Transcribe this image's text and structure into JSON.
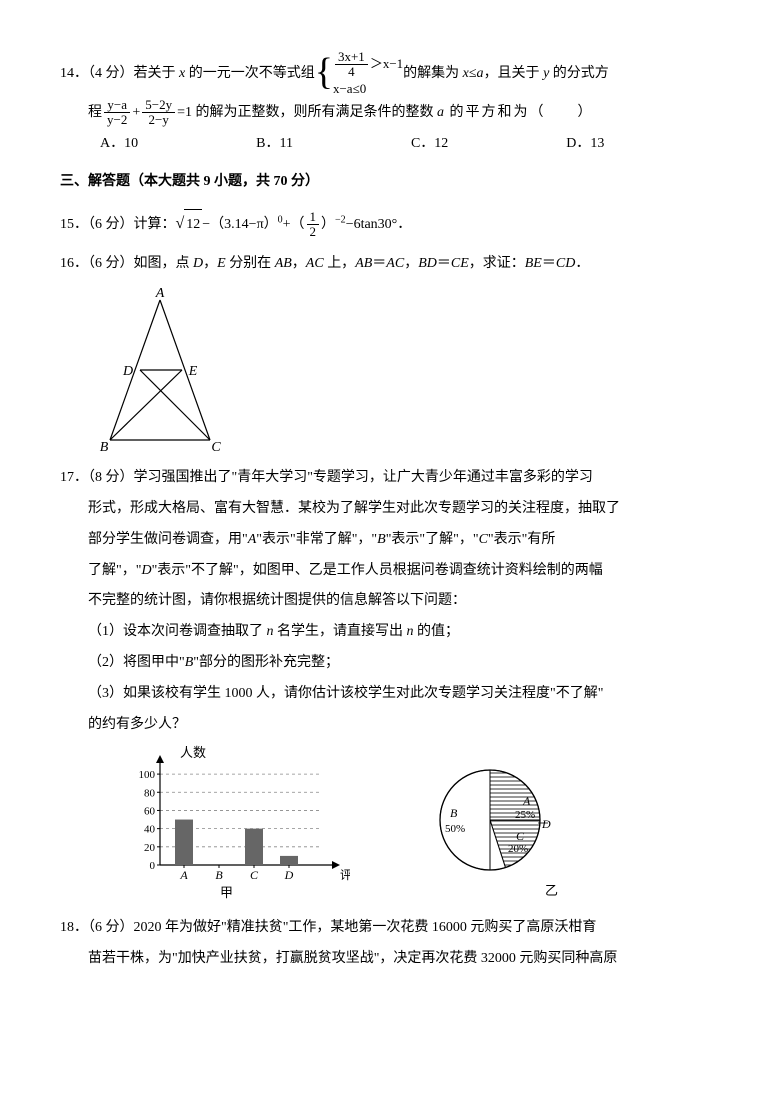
{
  "q14": {
    "number": "14．",
    "points": "（4 分）",
    "text_part1": "若关于 ",
    "var_x": "x",
    "text_part2": " 的一元一次不等式组",
    "system_top_num": "3x+1",
    "system_top_den": "4",
    "system_top_rhs": "＞x−1",
    "system_bottom": "x−a≤0",
    "text_part3": "的解集为 ",
    "solution": "x≤a",
    "text_part4": "，且关于 ",
    "var_y": "y",
    "text_part5": " 的分式方",
    "line2_pre": "程",
    "frac1_num": "y−a",
    "frac1_den": "y−2",
    "plus": "+",
    "frac2_num": "5−2y",
    "frac2_den": "2−y",
    "eq_rhs": "=1",
    "line2_post": " 的解为正整数，则所有满足条件的整数 ",
    "var_a": "a",
    "line2_end": " 的平方和为（　　）",
    "choice_a": "A．10",
    "choice_b": "B．11",
    "choice_c": "C．12",
    "choice_d": "D．13"
  },
  "section3": "三、解答题（本大题共 9 小题，共 70 分）",
  "q15": {
    "number": "15．",
    "points": "（6 分）",
    "label": "计算：",
    "sqrt_val": "12",
    "minus1": "−（3.14−π）",
    "exp0": "0",
    "plus": "+（",
    "frac_num": "1",
    "frac_den": "2",
    "close_exp": "）",
    "exp_neg2": "−2",
    "tail": "−6tan30°．"
  },
  "q16": {
    "number": "16．",
    "points": "（6 分）",
    "text": "如图，点 ",
    "D": "D",
    "comma1": "，",
    "E": "E",
    "text2": " 分别在 ",
    "AB": "AB",
    "comma2": "，",
    "AC": "AC",
    "text3": " 上，",
    "eq1_l": "AB",
    "eq1_r": "AC",
    "eq2_l": "BD",
    "eq2_r": "CE",
    "text4": "，求证：",
    "prove_l": "BE",
    "prove_r": "CD",
    "period": "．",
    "labels": {
      "A": "A",
      "B": "B",
      "C": "C",
      "D": "D",
      "E": "E"
    }
  },
  "q17": {
    "number": "17．",
    "points": "（8 分）",
    "line1": "学习强国推出了\"青年大学习\"专题学习，让广大青少年通过丰富多彩的学习",
    "line2": "形式，形成大格局、富有大智慧．某校为了解学生对此次专题学习的关注程度，抽取了",
    "line3": "部分学生做问卷调查，用\"",
    "A_label": "A",
    "line3b": "\"表示\"非常了解\"，\"",
    "B_label": "B",
    "line3c": "\"表示\"了解\"，\"",
    "C_label": "C",
    "line3d": "\"表示\"有所",
    "line4": "了解\"，\"",
    "D_label": "D",
    "line4b": "\"表示\"不了解\"，如图甲、乙是工作人员根据问卷调查统计资料绘制的两幅",
    "line5": "不完整的统计图，请你根据统计图提供的信息解答以下问题：",
    "sub1": "（1）设本次问卷调查抽取了 ",
    "var_n": "n",
    "sub1b": " 名学生，请直接写出 ",
    "sub1c": " 的值；",
    "sub2a": "（2）将图甲中\"",
    "sub2b": "\"部分的图形补充完整；",
    "sub3": "（3）如果该校有学生 1000 人，请你估计该校学生对此次专题学习关注程度\"不了解\"",
    "sub3b": "的约有多少人？",
    "bar_chart": {
      "y_title": "人数",
      "x_title": "评价等级",
      "caption": "甲",
      "y_ticks": [
        "100",
        "80",
        "60",
        "40",
        "20",
        "0"
      ],
      "x_labels": [
        "A",
        "B",
        "C",
        "D"
      ],
      "values": [
        50,
        0,
        40,
        10
      ],
      "bar_color": "#666666",
      "grid_color": "#888888",
      "y_max": 110
    },
    "pie_chart": {
      "caption": "乙",
      "slices": [
        {
          "label": "A",
          "pct": "25%",
          "start": 0,
          "end": 90,
          "pattern": "horiz"
        },
        {
          "label": "C",
          "pct": "20%",
          "start": 90,
          "end": 162,
          "pattern": "horiz"
        },
        {
          "label": "D",
          "pct": "",
          "start": 162,
          "end": 180,
          "pattern": "none"
        },
        {
          "label": "B",
          "pct": "50%",
          "start": 180,
          "end": 360,
          "pattern": "none"
        }
      ]
    }
  },
  "q18": {
    "number": "18．",
    "points": "（6 分）",
    "line1": "2020 年为做好\"精准扶贫\"工作，某地第一次花费 16000 元购买了高原沃柑育",
    "line2": "苗若干株，为\"加快产业扶贫，打赢脱贫攻坚战\"，决定再次花费 32000 元购买同种高原"
  }
}
